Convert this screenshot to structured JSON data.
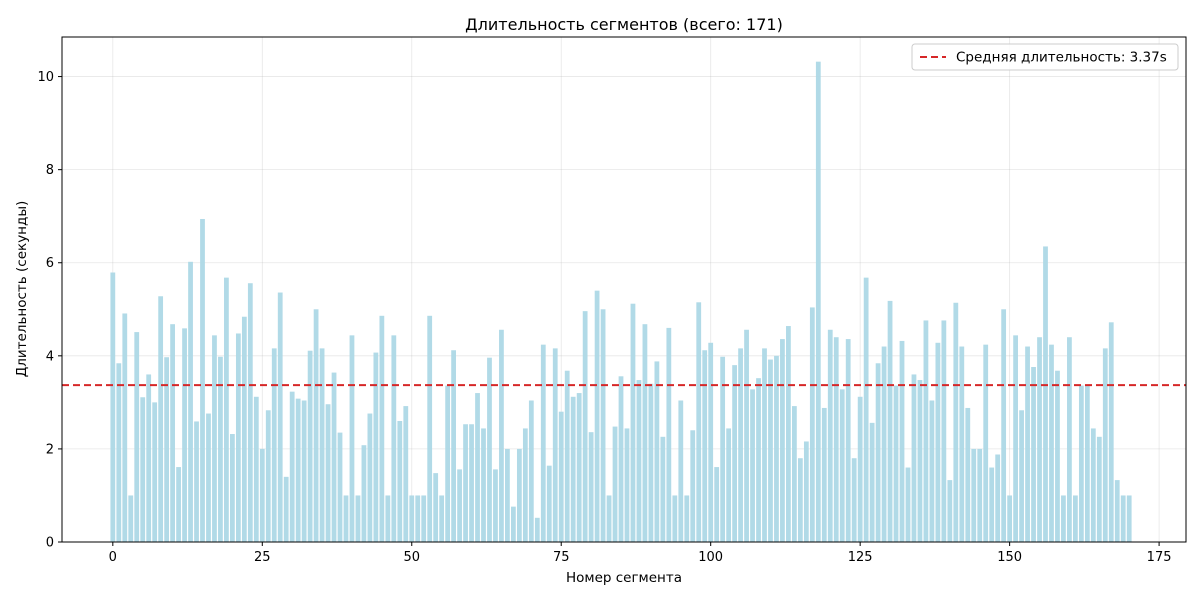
{
  "chart_data": {
    "type": "bar",
    "title": "Длительность сегментов (всего: 171)",
    "xlabel": "Номер сегмента",
    "ylabel": "Длительность (секунды)",
    "xlim": [
      -8.5,
      179.5
    ],
    "ylim": [
      0,
      10.85
    ],
    "xticks": [
      0,
      25,
      50,
      75,
      100,
      125,
      150,
      175
    ],
    "yticks": [
      0,
      2,
      4,
      6,
      8,
      10
    ],
    "grid": true,
    "bar_color": "#add8e6",
    "values": [
      5.79,
      3.84,
      4.91,
      1.0,
      4.51,
      3.11,
      3.6,
      3.0,
      5.28,
      3.97,
      4.68,
      1.61,
      4.59,
      6.02,
      2.59,
      6.94,
      2.76,
      4.44,
      3.98,
      5.68,
      2.32,
      4.48,
      4.84,
      5.56,
      3.12,
      2.0,
      2.83,
      4.16,
      5.36,
      1.4,
      3.23,
      3.08,
      3.04,
      4.11,
      5.0,
      4.16,
      2.96,
      3.64,
      2.35,
      1.0,
      4.44,
      1.0,
      2.08,
      2.76,
      4.07,
      4.86,
      1.0,
      4.44,
      2.6,
      2.92,
      1.0,
      1.0,
      1.0,
      4.86,
      1.48,
      1.0,
      3.36,
      4.12,
      1.56,
      2.53,
      2.53,
      3.2,
      2.44,
      3.96,
      1.56,
      4.56,
      2.0,
      0.76,
      2.0,
      2.44,
      3.04,
      0.52,
      4.24,
      1.64,
      4.16,
      2.8,
      3.68,
      3.12,
      3.2,
      4.96,
      2.36,
      5.4,
      5.0,
      1.0,
      2.48,
      3.56,
      2.44,
      5.12,
      3.48,
      4.68,
      3.4,
      3.88,
      2.26,
      4.6,
      1.0,
      3.04,
      1.0,
      2.4,
      5.15,
      4.12,
      4.28,
      1.61,
      3.98,
      2.44,
      3.8,
      4.16,
      4.56,
      3.28,
      3.52,
      4.16,
      3.92,
      4.0,
      4.36,
      4.64,
      2.92,
      1.8,
      2.16,
      5.04,
      10.32,
      2.88,
      4.56,
      4.4,
      3.28,
      4.36,
      1.8,
      3.12,
      5.68,
      2.56,
      3.84,
      4.2,
      5.18,
      3.36,
      4.32,
      1.6,
      3.6,
      3.48,
      4.76,
      3.04,
      4.28,
      4.76,
      1.33,
      5.14,
      4.2,
      2.88,
      2.0,
      2.0,
      4.24,
      1.6,
      1.88,
      5.0,
      1.0,
      4.44,
      2.83,
      4.2,
      3.76,
      4.4,
      6.35,
      4.24,
      3.68,
      1.0,
      4.4,
      1.0,
      3.36,
      3.36,
      2.44,
      2.26,
      4.16,
      4.72,
      1.33,
      1.0,
      1.0
    ],
    "reference_line": {
      "y": 3.37,
      "label": "Средняя длительность: 3.37s",
      "color": "#d62728",
      "style": "dashed"
    },
    "legend_position": "top-right"
  }
}
